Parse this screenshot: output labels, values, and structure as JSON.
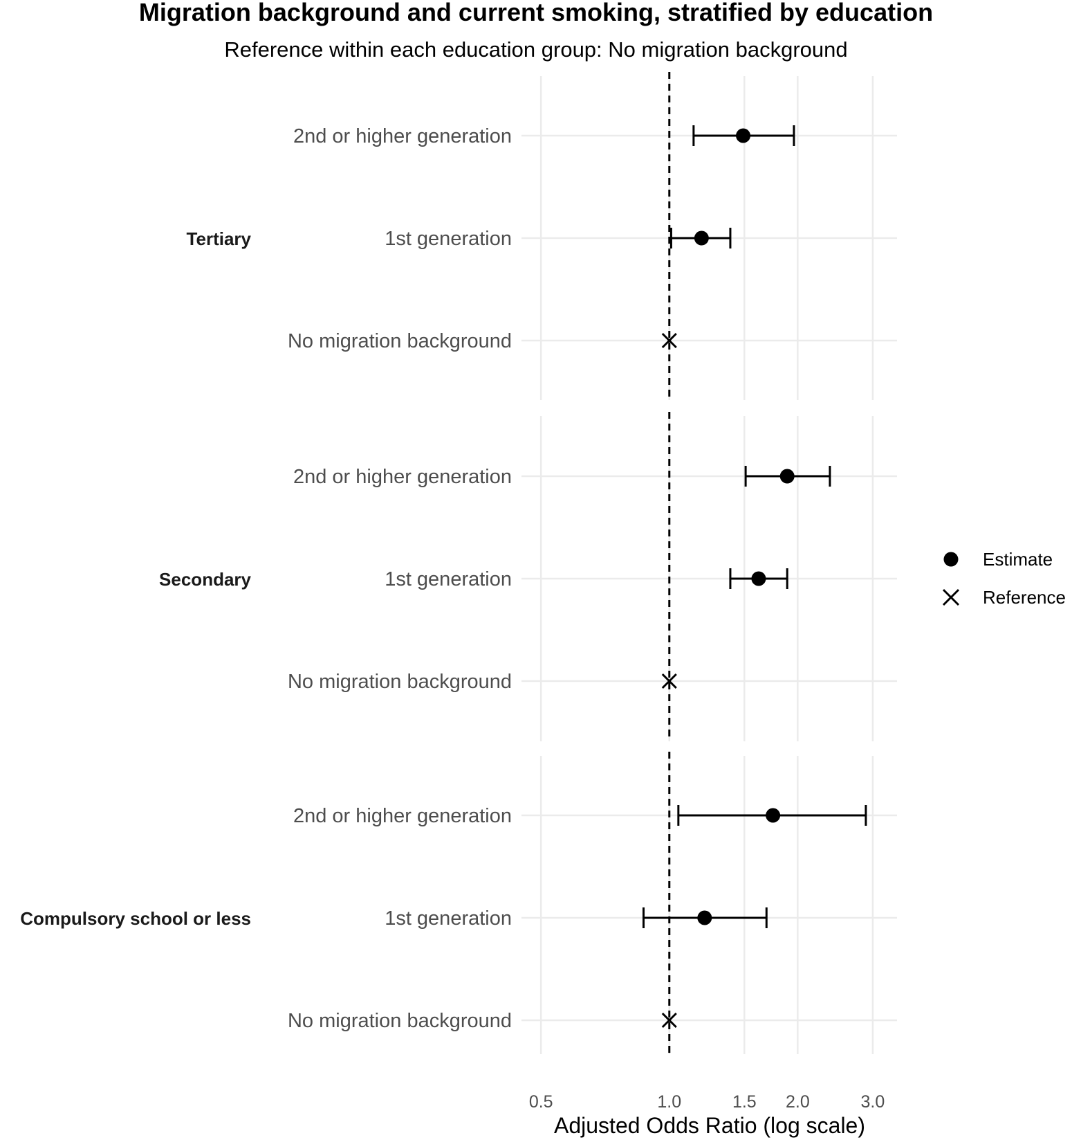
{
  "chart_data": {
    "type": "forest",
    "title": "Migration background and current smoking, stratified by education",
    "subtitle": "Reference within each education group: No migration background",
    "xlabel": "Adjusted Odds Ratio (log scale)",
    "xscale": "log",
    "xlim": [
      0.45,
      3.42
    ],
    "xticks": [
      0.5,
      1.0,
      1.5,
      2.0,
      3.0
    ],
    "xtick_labels": [
      "0.5",
      "1.0",
      "1.5",
      "2.0",
      "3.0"
    ],
    "reference_line": 1.0,
    "grid": true,
    "legend": {
      "position": "right",
      "items": [
        {
          "label": "Estimate",
          "marker": "circle"
        },
        {
          "label": "Reference",
          "marker": "x"
        }
      ]
    },
    "groups": [
      {
        "label": "Tertiary",
        "rows": [
          {
            "label": "2nd or higher generation",
            "type": "estimate",
            "or": 1.49,
            "lo": 1.14,
            "hi": 1.96
          },
          {
            "label": "1st generation",
            "type": "estimate",
            "or": 1.19,
            "lo": 1.01,
            "hi": 1.39
          },
          {
            "label": "No migration background",
            "type": "reference",
            "or": 1.0
          }
        ]
      },
      {
        "label": "Secondary",
        "rows": [
          {
            "label": "2nd or higher generation",
            "type": "estimate",
            "or": 1.89,
            "lo": 1.51,
            "hi": 2.38
          },
          {
            "label": "1st generation",
            "type": "estimate",
            "or": 1.62,
            "lo": 1.39,
            "hi": 1.89
          },
          {
            "label": "No migration background",
            "type": "reference",
            "or": 1.0
          }
        ]
      },
      {
        "label": "Compulsory school or less",
        "rows": [
          {
            "label": "2nd or higher generation",
            "type": "estimate",
            "or": 1.75,
            "lo": 1.05,
            "hi": 2.89
          },
          {
            "label": "1st generation",
            "type": "estimate",
            "or": 1.21,
            "lo": 0.87,
            "hi": 1.69
          },
          {
            "label": "No migration background",
            "type": "reference",
            "or": 1.0
          }
        ]
      }
    ]
  }
}
